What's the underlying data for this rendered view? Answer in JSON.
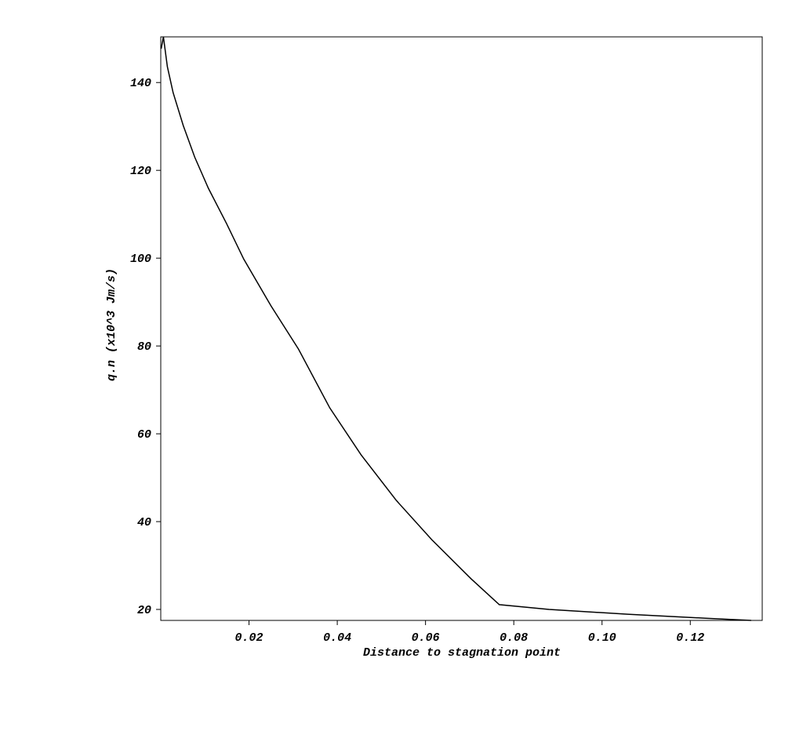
{
  "chart_data": {
    "type": "line",
    "x_label": "Distance to stagnation point",
    "y_label": "q.n (x10^3 Jm/s)",
    "x": [
      0.0001,
      0.0006,
      0.0015,
      0.0028,
      0.0051,
      0.0077,
      0.0108,
      0.0149,
      0.0188,
      0.025,
      0.0312,
      0.0383,
      0.0454,
      0.0534,
      0.0614,
      0.0703,
      0.0767,
      0.088,
      0.1058,
      0.1235,
      0.1338
    ],
    "series": [
      {
        "color": "#000000",
        "values": [
          147.7,
          150.4,
          143.6,
          137.7,
          130.2,
          123.0,
          115.9,
          107.9,
          99.8,
          89.1,
          79.3,
          65.9,
          55.2,
          44.8,
          35.9,
          27.0,
          21.1,
          20.0,
          18.9,
          18.0,
          17.5
        ]
      }
    ],
    "xlim": [
      0,
      0.1363
    ],
    "ylim": [
      17.5,
      150.4
    ],
    "xticks": [
      0.02,
      0.04,
      0.06,
      0.08,
      {
        "value": 0.1,
        "label": "0.10"
      },
      0.12
    ],
    "yticks": [
      20,
      40,
      60,
      80,
      100,
      120,
      140
    ]
  }
}
